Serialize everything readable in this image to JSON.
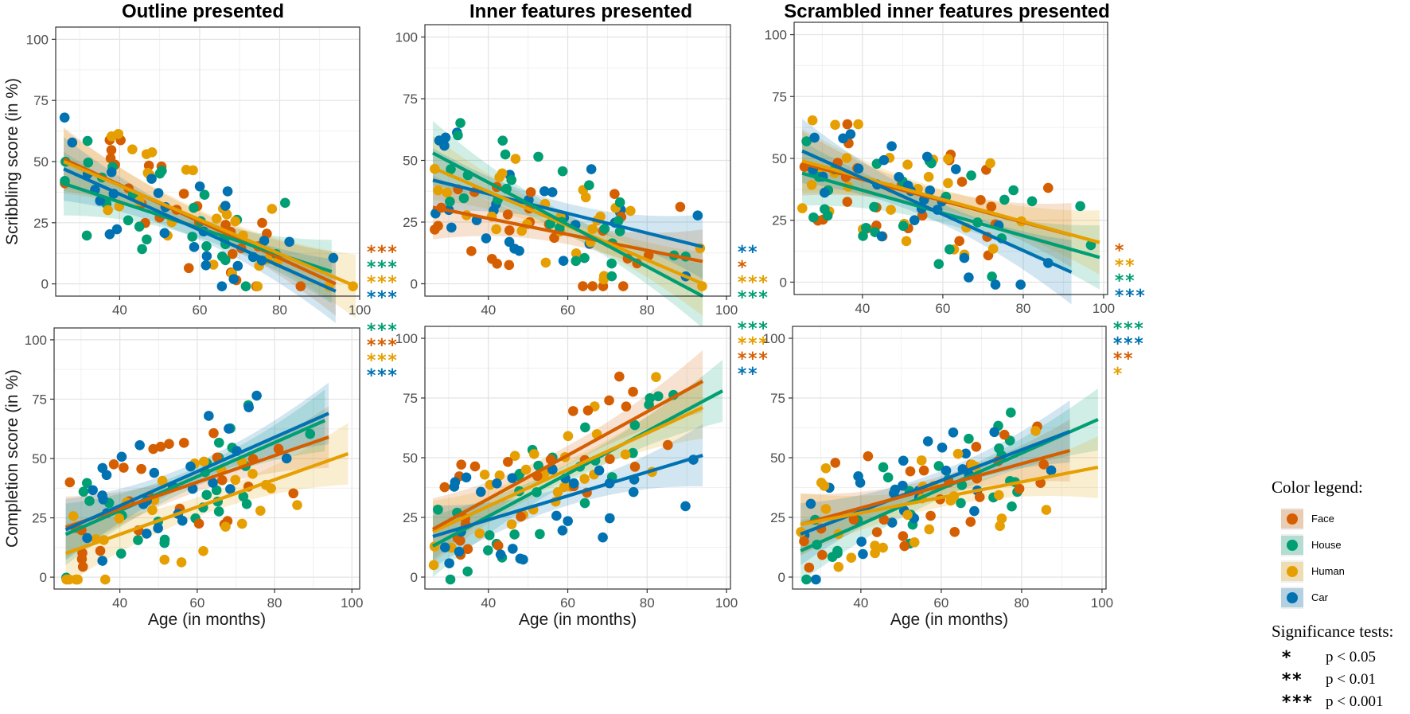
{
  "colors": {
    "Face": "#d55e00",
    "House": "#009e73",
    "Human": "#e69f00",
    "Car": "#0072b2"
  },
  "axis": {
    "xlabel": "Age (in months)",
    "ylabel_row1": "Scribbling score (in %)",
    "ylabel_row2": "Completion score (in %)",
    "x_ticks": [
      "40",
      "60",
      "80",
      "100"
    ],
    "y_ticks": [
      "0",
      "25",
      "50",
      "75",
      "100"
    ]
  },
  "legend": {
    "color_title": "Color legend:",
    "items": [
      {
        "label": "Face",
        "color": "#d55e00"
      },
      {
        "label": "House",
        "color": "#009e73"
      },
      {
        "label": "Human",
        "color": "#e69f00"
      },
      {
        "label": "Car",
        "color": "#0072b2"
      }
    ],
    "sig_title": "Significance tests:",
    "sig_items": [
      {
        "stars": "*",
        "text": "p < 0.05"
      },
      {
        "stars": "**",
        "text": "p < 0.01"
      },
      {
        "stars": "***",
        "text": "p < 0.001"
      }
    ]
  },
  "chart_data": [
    {
      "type": "scatter",
      "title": "Outline presented",
      "ylabel": "Scribbling score (in %)",
      "xlabel": "",
      "xlim": [
        24,
        100
      ],
      "ylim": [
        -5,
        105
      ],
      "series": [
        {
          "name": "Face",
          "fit": [
            [
              26,
              51
            ],
            [
              94,
              0
            ]
          ],
          "stars": "***"
        },
        {
          "name": "House",
          "fit": [
            [
              26,
              41
            ],
            [
              93,
              5
            ]
          ],
          "stars": "***"
        },
        {
          "name": "Human",
          "fit": [
            [
              26,
              50
            ],
            [
              99,
              -1
            ]
          ],
          "stars": "***"
        },
        {
          "name": "Car",
          "fit": [
            [
              26,
              47
            ],
            [
              94,
              -3
            ]
          ],
          "stars": "***"
        }
      ]
    },
    {
      "type": "scatter",
      "title": "Inner features presented",
      "ylabel": "",
      "xlabel": "",
      "xlim": [
        24,
        101
      ],
      "ylim": [
        -5,
        105
      ],
      "series": [
        {
          "name": "Car",
          "fit": [
            [
              26,
              42
            ],
            [
              94,
              15
            ]
          ],
          "stars": "**"
        },
        {
          "name": "Face",
          "fit": [
            [
              26,
              31
            ],
            [
              94,
              9
            ]
          ],
          "stars": "*"
        },
        {
          "name": "Human",
          "fit": [
            [
              26,
              47
            ],
            [
              94,
              0
            ]
          ],
          "stars": "***"
        },
        {
          "name": "House",
          "fit": [
            [
              26,
              53
            ],
            [
              94,
              -5
            ]
          ],
          "stars": "***"
        }
      ]
    },
    {
      "type": "scatter",
      "title": "Scrambled inner features presented",
      "ylabel": "",
      "xlabel": "",
      "xlim": [
        23,
        101
      ],
      "ylim": [
        -5,
        105
      ],
      "series": [
        {
          "name": "Face",
          "fit": [
            [
              25,
              48
            ],
            [
              92,
              19
            ]
          ],
          "stars": "*"
        },
        {
          "name": "Human",
          "fit": [
            [
              25,
              49
            ],
            [
              99,
              16
            ]
          ],
          "stars": "**"
        },
        {
          "name": "House",
          "fit": [
            [
              25,
              44
            ],
            [
              99,
              10
            ]
          ],
          "stars": "**"
        },
        {
          "name": "Car",
          "fit": [
            [
              25,
              53
            ],
            [
              92,
              4
            ]
          ],
          "stars": "***"
        }
      ]
    },
    {
      "type": "scatter",
      "title": "",
      "ylabel": "Completion score (in %)",
      "xlabel": "Age (in months)",
      "xlim": [
        23,
        102
      ],
      "ylim": [
        -5,
        105
      ],
      "series": [
        {
          "name": "House",
          "fit": [
            [
              26,
              18
            ],
            [
              93,
              66
            ]
          ],
          "stars": "***"
        },
        {
          "name": "Face",
          "fit": [
            [
              26,
              21
            ],
            [
              94,
              59
            ]
          ],
          "stars": "***"
        },
        {
          "name": "Human",
          "fit": [
            [
              26,
              10
            ],
            [
              99,
              52
            ]
          ],
          "stars": "***"
        },
        {
          "name": "Car",
          "fit": [
            [
              26,
              20
            ],
            [
              94,
              69
            ]
          ],
          "stars": "***"
        }
      ]
    },
    {
      "type": "scatter",
      "title": "",
      "ylabel": "",
      "xlabel": "Age (in months)",
      "xlim": [
        24,
        101
      ],
      "ylim": [
        -5,
        105
      ],
      "series": [
        {
          "name": "House",
          "fit": [
            [
              26,
              13
            ],
            [
              99,
              78
            ]
          ],
          "stars": "***"
        },
        {
          "name": "Human",
          "fit": [
            [
              26,
              19
            ],
            [
              94,
              71
            ]
          ],
          "stars": "***"
        },
        {
          "name": "Face",
          "fit": [
            [
              26,
              20
            ],
            [
              94,
              82
            ]
          ],
          "stars": "***"
        },
        {
          "name": "Car",
          "fit": [
            [
              26,
              17
            ],
            [
              94,
              51
            ]
          ],
          "stars": "**"
        }
      ]
    },
    {
      "type": "scatter",
      "title": "",
      "ylabel": "",
      "xlabel": "Age (in months)",
      "xlim": [
        23,
        101
      ],
      "ylim": [
        -5,
        105
      ],
      "series": [
        {
          "name": "House",
          "fit": [
            [
              25,
              11
            ],
            [
              99,
              66
            ]
          ],
          "stars": "***"
        },
        {
          "name": "Car",
          "fit": [
            [
              25,
              18
            ],
            [
              92,
              61
            ]
          ],
          "stars": "***"
        },
        {
          "name": "Face",
          "fit": [
            [
              25,
              22
            ],
            [
              92,
              53
            ]
          ],
          "stars": "**"
        },
        {
          "name": "Human",
          "fit": [
            [
              25,
              22
            ],
            [
              99,
              46
            ]
          ],
          "stars": "*"
        }
      ]
    }
  ]
}
